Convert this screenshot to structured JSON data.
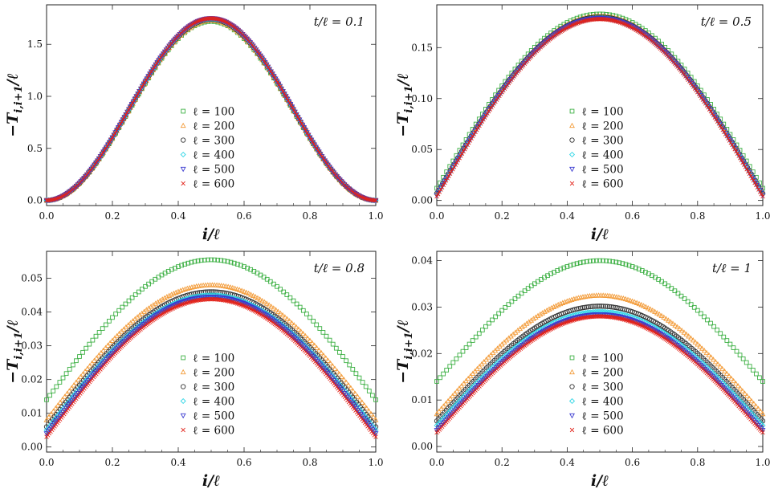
{
  "figure": {
    "xlabel": "i/ℓ",
    "ylabel": "−T_{i,i+1}/ℓ",
    "legend_prefix": "ℓ = "
  },
  "series_style": [
    {
      "name": "100",
      "color": "#3cb043",
      "marker": "square"
    },
    {
      "name": "200",
      "color": "#f39c3a",
      "marker": "triangle-up"
    },
    {
      "name": "300",
      "color": "#333333",
      "marker": "circle"
    },
    {
      "name": "400",
      "color": "#2fd6e6",
      "marker": "diamond"
    },
    {
      "name": "500",
      "color": "#3a3ad0",
      "marker": "triangle-down"
    },
    {
      "name": "600",
      "color": "#e2231a",
      "marker": "cross"
    }
  ],
  "chart_data": [
    {
      "type": "scatter",
      "title": "t/ℓ = 0.1",
      "xlabel": "i/ℓ",
      "ylabel": "−T_{i,i+1}/ℓ",
      "xlim": [
        0,
        1
      ],
      "ylim": [
        -0.05,
        1.88
      ],
      "xticks": [
        "0.0",
        "0.2",
        "0.4",
        "0.6",
        "0.8",
        "1.0"
      ],
      "xtick_values": [
        0,
        0.2,
        0.4,
        0.6,
        0.8,
        1.0
      ],
      "yticks": [
        "0.0",
        "0.5",
        "1.0",
        "1.5"
      ],
      "ytick_values": [
        0,
        0.5,
        1.0,
        1.5
      ],
      "legend": [
        "ℓ = 100",
        "ℓ = 200",
        "ℓ = 300",
        "ℓ = 400",
        "ℓ = 500",
        "ℓ = 600"
      ],
      "series": [
        {
          "name": "ℓ = 100",
          "edge": 0.0,
          "peak": 1.72,
          "shape": "bell"
        },
        {
          "name": "ℓ = 200",
          "edge": 0.0,
          "peak": 1.73,
          "shape": "bell"
        },
        {
          "name": "ℓ = 300",
          "edge": 0.0,
          "peak": 1.74,
          "shape": "bell"
        },
        {
          "name": "ℓ = 400",
          "edge": 0.0,
          "peak": 1.745,
          "shape": "bell"
        },
        {
          "name": "ℓ = 500",
          "edge": 0.0,
          "peak": 1.75,
          "shape": "bell"
        },
        {
          "name": "ℓ = 600",
          "edge": 0.0,
          "peak": 1.75,
          "shape": "bell"
        }
      ]
    },
    {
      "type": "scatter",
      "title": "t/ℓ = 0.5",
      "xlabel": "i/ℓ",
      "ylabel": "−T_{i,i+1}/ℓ",
      "xlim": [
        0,
        1
      ],
      "ylim": [
        -0.005,
        0.192
      ],
      "xticks": [
        "0.0",
        "0.2",
        "0.4",
        "0.6",
        "0.8",
        "1.0"
      ],
      "xtick_values": [
        0,
        0.2,
        0.4,
        0.6,
        0.8,
        1.0
      ],
      "yticks": [
        "0.00",
        "0.05",
        "0.10",
        "0.15"
      ],
      "ytick_values": [
        0,
        0.05,
        0.1,
        0.15
      ],
      "legend": [
        "ℓ = 100",
        "ℓ = 200",
        "ℓ = 300",
        "ℓ = 400",
        "ℓ = 500",
        "ℓ = 600"
      ],
      "series": [
        {
          "name": "ℓ = 100",
          "edge": 0.012,
          "peak": 0.183,
          "shape": "sine"
        },
        {
          "name": "ℓ = 200",
          "edge": 0.008,
          "peak": 0.181,
          "shape": "sine"
        },
        {
          "name": "ℓ = 300",
          "edge": 0.007,
          "peak": 0.18,
          "shape": "sine"
        },
        {
          "name": "ℓ = 400",
          "edge": 0.006,
          "peak": 0.179,
          "shape": "sine"
        },
        {
          "name": "ℓ = 500",
          "edge": 0.005,
          "peak": 0.179,
          "shape": "sine"
        },
        {
          "name": "ℓ = 600",
          "edge": 0.004,
          "peak": 0.178,
          "shape": "sine"
        }
      ]
    },
    {
      "type": "scatter",
      "title": "t/ℓ = 0.8",
      "xlabel": "i/ℓ",
      "ylabel": "−T_{i,i+1}/ℓ",
      "xlim": [
        0,
        1
      ],
      "ylim": [
        -0.0015,
        0.058
      ],
      "xticks": [
        "0.0",
        "0.2",
        "0.4",
        "0.6",
        "0.8",
        "1.0"
      ],
      "xtick_values": [
        0,
        0.2,
        0.4,
        0.6,
        0.8,
        1.0
      ],
      "yticks": [
        "0.00",
        "0.01",
        "0.02",
        "0.03",
        "0.04",
        "0.05"
      ],
      "ytick_values": [
        0,
        0.01,
        0.02,
        0.03,
        0.04,
        0.05
      ],
      "legend": [
        "ℓ = 100",
        "ℓ = 200",
        "ℓ = 300",
        "ℓ = 400",
        "ℓ = 500",
        "ℓ = 600"
      ],
      "series": [
        {
          "name": "ℓ = 100",
          "edge": 0.014,
          "peak": 0.0555,
          "shape": "sine"
        },
        {
          "name": "ℓ = 200",
          "edge": 0.008,
          "peak": 0.048,
          "shape": "sine"
        },
        {
          "name": "ℓ = 300",
          "edge": 0.006,
          "peak": 0.046,
          "shape": "sine"
        },
        {
          "name": "ℓ = 400",
          "edge": 0.005,
          "peak": 0.045,
          "shape": "sine"
        },
        {
          "name": "ℓ = 500",
          "edge": 0.004,
          "peak": 0.0445,
          "shape": "sine"
        },
        {
          "name": "ℓ = 600",
          "edge": 0.003,
          "peak": 0.0438,
          "shape": "sine"
        }
      ]
    },
    {
      "type": "scatter",
      "title": "t/ℓ = 1",
      "xlabel": "i/ℓ",
      "ylabel": "−T_{i,i+1}/ℓ",
      "xlim": [
        0,
        1
      ],
      "ylim": [
        -0.0012,
        0.042
      ],
      "xticks": [
        "0.0",
        "0.2",
        "0.4",
        "0.6",
        "0.8",
        "1.0"
      ],
      "xtick_values": [
        0,
        0.2,
        0.4,
        0.6,
        0.8,
        1.0
      ],
      "yticks": [
        "0.00",
        "0.01",
        "0.02",
        "0.03",
        "0.04"
      ],
      "ytick_values": [
        0,
        0.01,
        0.02,
        0.03,
        0.04
      ],
      "legend": [
        "ℓ = 100",
        "ℓ = 200",
        "ℓ = 300",
        "ℓ = 400",
        "ℓ = 500",
        "ℓ = 600"
      ],
      "series": [
        {
          "name": "ℓ = 100",
          "edge": 0.014,
          "peak": 0.04,
          "shape": "sine"
        },
        {
          "name": "ℓ = 200",
          "edge": 0.007,
          "peak": 0.0325,
          "shape": "sine"
        },
        {
          "name": "ℓ = 300",
          "edge": 0.0055,
          "peak": 0.0302,
          "shape": "sine"
        },
        {
          "name": "ℓ = 400",
          "edge": 0.0045,
          "peak": 0.029,
          "shape": "sine"
        },
        {
          "name": "ℓ = 500",
          "edge": 0.0035,
          "peak": 0.0284,
          "shape": "sine"
        },
        {
          "name": "ℓ = 600",
          "edge": 0.003,
          "peak": 0.028,
          "shape": "sine"
        }
      ]
    }
  ]
}
